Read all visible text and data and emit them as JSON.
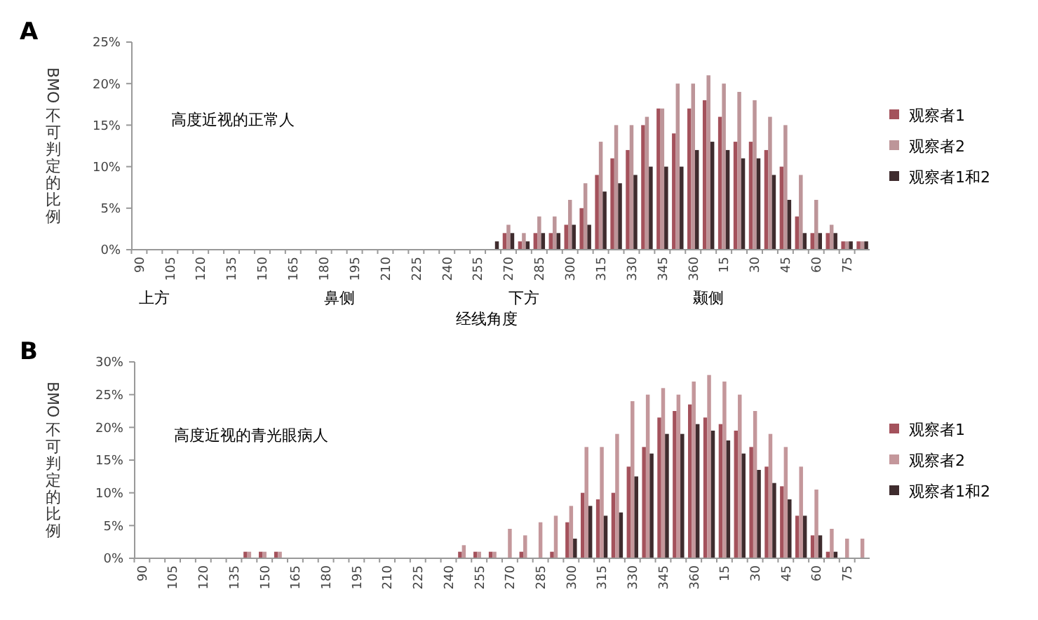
{
  "chart_data": [
    {
      "type": "bar",
      "title": "A",
      "ylabel": "BMO不可判定的比例",
      "xlabel": "经线角度",
      "categories": [
        "90",
        null,
        "105",
        null,
        "120",
        null,
        "135",
        null,
        "150",
        null,
        "165",
        null,
        "180",
        null,
        "195",
        null,
        "210",
        null,
        "225",
        null,
        "240",
        null,
        "255",
        null,
        "270",
        null,
        "285",
        null,
        "300",
        null,
        "315",
        null,
        "330",
        null,
        "345",
        null,
        "360",
        null,
        "15",
        null,
        "30",
        null,
        "45",
        null,
        "60",
        null,
        "75",
        null
      ],
      "series": [
        {
          "name": "观察者1",
          "color": "#a4525c",
          "values": [
            0,
            0,
            0,
            0,
            0,
            0,
            0,
            0,
            0,
            0,
            0,
            0,
            0,
            0,
            0,
            0,
            0,
            0,
            0,
            0,
            0,
            0,
            0,
            0,
            2,
            1,
            2,
            2,
            3,
            5,
            9,
            11,
            12,
            15,
            17,
            14,
            17,
            18,
            16,
            13,
            13,
            12,
            10,
            4,
            2,
            2,
            1,
            1
          ]
        },
        {
          "name": "观察者2",
          "color": "#bd9599",
          "values": [
            0,
            0,
            0,
            0,
            0,
            0,
            0,
            0,
            0,
            0,
            0,
            0,
            0,
            0,
            0,
            0,
            0,
            0,
            0,
            0,
            0,
            0,
            0,
            0,
            3,
            2,
            4,
            4,
            6,
            8,
            13,
            15,
            15,
            16,
            17,
            20,
            20,
            21,
            20,
            19,
            18,
            16,
            15,
            9,
            6,
            3,
            1,
            1
          ]
        },
        {
          "name": "观察者1和2",
          "color": "#3f2c2e",
          "values": [
            0,
            0,
            0,
            0,
            0,
            0,
            0,
            0,
            0,
            0,
            0,
            0,
            0,
            0,
            0,
            0,
            0,
            0,
            0,
            0,
            0,
            0,
            0,
            1,
            2,
            1,
            2,
            2,
            3,
            3,
            7,
            8,
            9,
            10,
            10,
            10,
            12,
            13,
            12,
            11,
            11,
            9,
            6,
            2,
            2,
            2,
            1,
            1
          ]
        }
      ],
      "ylim": [
        0,
        25
      ],
      "yticks": [
        {
          "value": 0,
          "label": "0%"
        },
        {
          "value": 5,
          "label": "5%"
        },
        {
          "value": 10,
          "label": "10%"
        },
        {
          "value": 15,
          "label": "15%"
        },
        {
          "value": 20,
          "label": "20%"
        },
        {
          "value": 25,
          "label": "25%"
        }
      ],
      "legend": "right",
      "grid": false,
      "annotations": [
        "高度近视的正常人",
        "上方",
        "鼻侧",
        "下方",
        "颞侧"
      ]
    },
    {
      "type": "bar",
      "title": "B",
      "ylabel": "BMO不可判定的比例",
      "categories": [
        "90",
        null,
        "105",
        null,
        "120",
        null,
        "135",
        null,
        "150",
        null,
        "165",
        null,
        "180",
        null,
        "195",
        null,
        "210",
        null,
        "225",
        null,
        "240",
        null,
        "255",
        null,
        "270",
        null,
        "285",
        null,
        "300",
        null,
        "315",
        null,
        "330",
        null,
        "345",
        null,
        "360",
        null,
        "15",
        null,
        "30",
        null,
        "45",
        null,
        "60",
        null,
        "75",
        null
      ],
      "series": [
        {
          "name": "观察者1",
          "color": "#a4525c",
          "values": [
            0,
            0,
            0,
            0,
            0,
            0,
            0,
            1,
            1,
            1,
            0,
            0,
            0,
            0,
            0,
            0,
            0,
            0,
            0,
            0,
            0,
            1,
            1,
            1,
            0,
            1,
            0,
            1,
            5.5,
            10,
            9,
            10,
            14,
            17,
            21.5,
            22.5,
            23.5,
            21.5,
            20.5,
            19.5,
            17,
            14,
            11,
            6.5,
            3.5,
            1,
            0,
            0
          ]
        },
        {
          "name": "观察者2",
          "color": "#c4979b",
          "values": [
            0,
            0,
            0,
            0,
            0,
            0,
            0,
            1,
            1,
            1,
            0,
            0,
            0,
            0,
            0,
            0,
            0,
            0,
            0,
            0,
            0,
            2,
            1,
            1,
            4.5,
            3.5,
            5.5,
            6.5,
            8,
            17,
            17,
            19,
            24,
            25,
            26,
            25,
            27,
            28,
            27,
            25,
            22.5,
            19,
            17,
            14,
            10.5,
            4.5,
            3,
            3
          ]
        },
        {
          "name": "观察者1和2",
          "color": "#3f2c2e",
          "values": [
            0,
            0,
            0,
            0,
            0,
            0,
            0,
            0,
            0,
            0,
            0,
            0,
            0,
            0,
            0,
            0,
            0,
            0,
            0,
            0,
            0,
            0,
            0,
            0,
            0,
            0,
            0,
            0,
            3,
            8,
            6.5,
            7,
            12.5,
            16,
            19,
            19,
            20.5,
            19.5,
            18,
            16,
            13.5,
            11.5,
            9,
            6.5,
            3.5,
            1,
            0,
            0
          ]
        }
      ],
      "ylim": [
        0,
        30
      ],
      "yticks": [
        {
          "value": 0,
          "label": "0%"
        },
        {
          "value": 5,
          "label": "5%"
        },
        {
          "value": 10,
          "label": "10%"
        },
        {
          "value": 15,
          "label": "15%"
        },
        {
          "value": 20,
          "label": "20%"
        },
        {
          "value": 25,
          "label": "25%"
        },
        {
          "value": 30,
          "label": "30%"
        }
      ],
      "legend": "right",
      "grid": false,
      "annotations": [
        "高度近视的青光眼病人"
      ]
    }
  ]
}
